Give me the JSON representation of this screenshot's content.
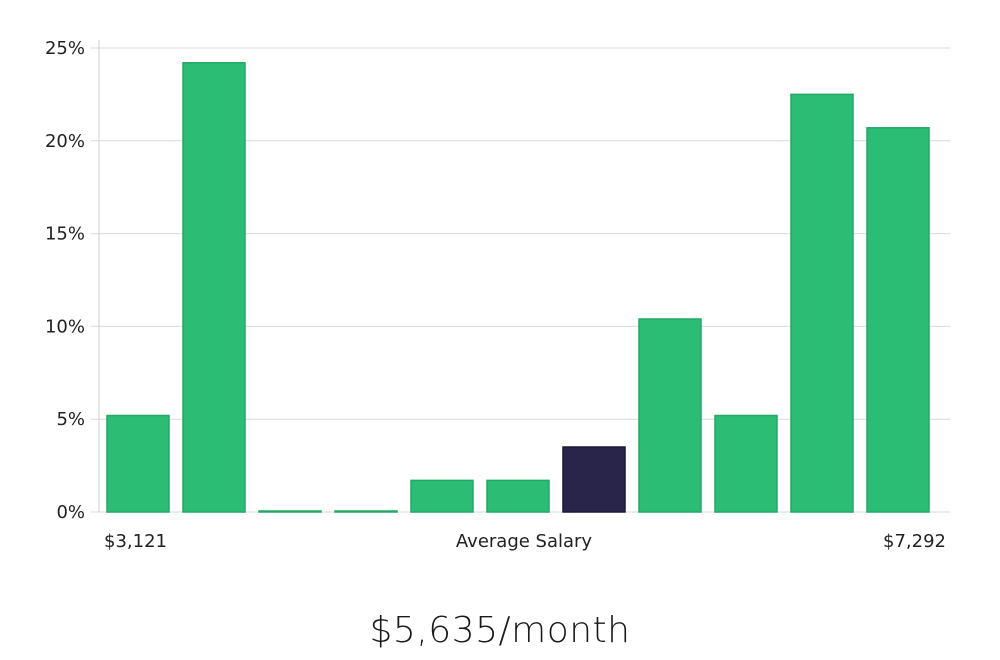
{
  "chart_data": {
    "type": "bar",
    "values": [
      5.2,
      24.2,
      0.05,
      0.05,
      1.7,
      1.7,
      3.5,
      10.4,
      5.2,
      22.5,
      20.7
    ],
    "highlight_index": 6,
    "ylim": [
      0,
      25
    ],
    "y_ticks": [
      0,
      5,
      10,
      15,
      20,
      25
    ],
    "y_tick_format": "percent",
    "x_min_label": "$3,121",
    "x_center_label": "Average Salary",
    "x_max_label": "$7,292",
    "grid": true,
    "colors": {
      "bar": "#2bbd74",
      "bar_highlight": "#28244a",
      "bar_border": "#22a864"
    }
  },
  "summary": {
    "salary": "$5,635/month"
  }
}
